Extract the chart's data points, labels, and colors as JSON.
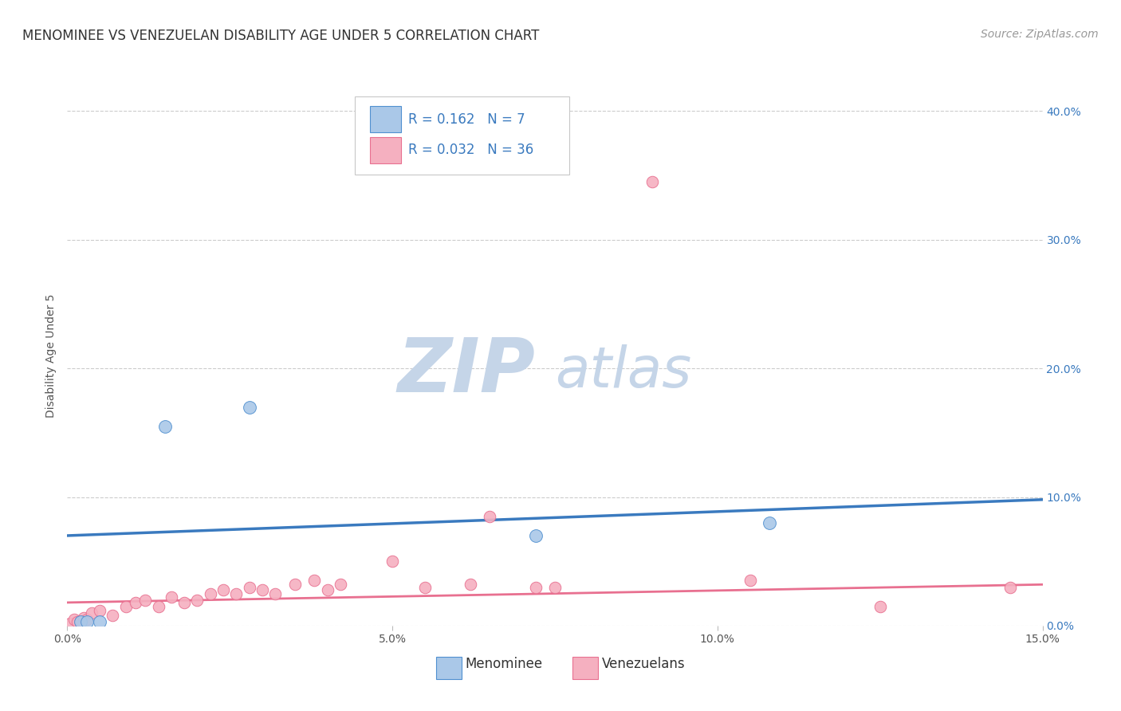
{
  "title": "MENOMINEE VS VENEZUELAN DISABILITY AGE UNDER 5 CORRELATION CHART",
  "source": "Source: ZipAtlas.com",
  "xlabel_ticks": [
    "0.0%",
    "5.0%",
    "10.0%",
    "15.0%"
  ],
  "xlabel_tick_vals": [
    0.0,
    5.0,
    10.0,
    15.0
  ],
  "ylabel_ticks": [
    "0.0%",
    "10.0%",
    "20.0%",
    "30.0%",
    "40.0%"
  ],
  "ylabel_tick_vals": [
    0.0,
    10.0,
    20.0,
    30.0,
    40.0
  ],
  "xlim": [
    0.0,
    15.0
  ],
  "ylim": [
    0.0,
    42.0
  ],
  "menominee_x": [
    0.2,
    0.3,
    0.5,
    1.5,
    2.8,
    7.2,
    10.8
  ],
  "menominee_y": [
    0.3,
    0.3,
    0.3,
    15.5,
    17.0,
    7.0,
    8.0
  ],
  "venezuelan_x": [
    0.05,
    0.1,
    0.15,
    0.2,
    0.25,
    0.3,
    0.38,
    0.5,
    0.7,
    0.9,
    1.05,
    1.2,
    1.4,
    1.6,
    1.8,
    2.0,
    2.2,
    2.4,
    2.6,
    2.8,
    3.0,
    3.2,
    3.5,
    3.8,
    4.0,
    4.2,
    5.0,
    5.5,
    6.2,
    6.5,
    7.2,
    7.5,
    9.0,
    10.5,
    12.5,
    14.5
  ],
  "venezuelan_y": [
    0.2,
    0.5,
    0.3,
    0.4,
    0.6,
    0.5,
    1.0,
    1.2,
    0.8,
    1.5,
    1.8,
    2.0,
    1.5,
    2.2,
    1.8,
    2.0,
    2.5,
    2.8,
    2.5,
    3.0,
    2.8,
    2.5,
    3.2,
    3.5,
    2.8,
    3.2,
    5.0,
    3.0,
    3.2,
    8.5,
    3.0,
    3.0,
    34.5,
    3.5,
    1.5,
    3.0
  ],
  "menominee_color": "#aac8e8",
  "venezuelan_color": "#f5b0c0",
  "menominee_edge_color": "#5090d0",
  "venezuelan_edge_color": "#e87090",
  "menominee_line_color": "#3a7abf",
  "venezuelan_line_color": "#e87090",
  "R_menominee": 0.162,
  "N_menominee": 7,
  "R_venezuelan": 0.032,
  "N_venezuelan": 36,
  "legend_label_menominee": "Menominee",
  "legend_label_venezuelan": "Venezuelans",
  "ylabel": "Disability Age Under 5",
  "title_fontsize": 12,
  "axis_label_fontsize": 10,
  "tick_fontsize": 10,
  "legend_fontsize": 12,
  "source_fontsize": 10,
  "watermark_zip_color": "#c5d5e8",
  "watermark_atlas_color": "#c5d5e8",
  "watermark_fontsize": 68,
  "background_color": "#ffffff",
  "grid_color": "#cccccc",
  "menominee_trendline_start_y": 7.0,
  "menominee_trendline_end_y": 9.8,
  "venezuelan_trendline_start_y": 1.8,
  "venezuelan_trendline_end_y": 3.2
}
